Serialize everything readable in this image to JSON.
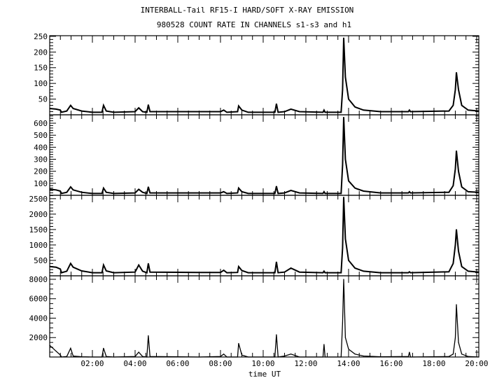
{
  "chart_data": {
    "type": "line",
    "title": "INTERBALL-Tail RF15-I HARD/SOFT X-RAY EMISSION",
    "subtitle": "980528  COUNT RATE IN CHANNELS s1-s3 and h1",
    "xlabel": "time UT",
    "xlim_hours": [
      0,
      20.1
    ],
    "x_tick_labels": [
      "02:00",
      "04:00",
      "06:00",
      "08:00",
      "10:00",
      "12:00",
      "14:00",
      "16:00",
      "18:00",
      "20:00"
    ],
    "x_tick_hours": [
      2,
      4,
      6,
      8,
      10,
      12,
      14,
      16,
      18,
      20
    ],
    "x_minor_step_hours": 0.5,
    "grid": false,
    "times_hours": [
      0,
      0.3,
      0.5,
      0.55,
      0.8,
      0.98,
      1.1,
      1.5,
      2,
      2.45,
      2.52,
      2.65,
      3,
      4.0,
      4.17,
      4.35,
      4.55,
      4.62,
      4.7,
      7,
      8.0,
      8.15,
      8.3,
      8.8,
      8.85,
      9.0,
      9.3,
      10.55,
      10.62,
      10.7,
      11.0,
      11.3,
      11.7,
      12.8,
      12.85,
      12.9,
      13.65,
      13.72,
      13.77,
      13.85,
      14.0,
      14.3,
      14.7,
      15.5,
      16.8,
      16.85,
      16.9,
      18.7,
      18.9,
      19.0,
      19.05,
      19.15,
      19.3,
      19.6,
      20.1
    ],
    "series": [
      {
        "name": "s1",
        "ylim": [
          0,
          252
        ],
        "y_ticks": [
          50,
          100,
          150,
          200,
          250
        ],
        "y_minor_step": 10,
        "values": [
          20,
          18,
          15,
          8,
          12,
          30,
          20,
          12,
          8,
          8,
          30,
          12,
          8,
          10,
          22,
          10,
          8,
          32,
          10,
          10,
          10,
          15,
          8,
          10,
          28,
          15,
          8,
          8,
          35,
          8,
          10,
          18,
          10,
          8,
          15,
          8,
          8,
          80,
          245,
          120,
          50,
          25,
          15,
          10,
          10,
          15,
          10,
          12,
          30,
          80,
          135,
          80,
          30,
          15,
          12
        ]
      },
      {
        "name": "s2",
        "ylim": [
          0,
          670
        ],
        "y_ticks": [
          100,
          200,
          300,
          400,
          500,
          600
        ],
        "y_minor_step": 20,
        "values": [
          50,
          45,
          35,
          15,
          25,
          70,
          45,
          25,
          15,
          15,
          60,
          25,
          15,
          20,
          50,
          25,
          15,
          70,
          20,
          20,
          20,
          30,
          15,
          20,
          60,
          30,
          15,
          15,
          75,
          15,
          20,
          40,
          20,
          15,
          30,
          15,
          15,
          250,
          650,
          300,
          120,
          60,
          35,
          20,
          20,
          30,
          20,
          25,
          80,
          220,
          370,
          200,
          70,
          30,
          25
        ]
      },
      {
        "name": "s3",
        "ylim": [
          0,
          2610
        ],
        "y_ticks": [
          500,
          1000,
          1500,
          2000,
          2500
        ],
        "y_minor_step": 100,
        "values": [
          300,
          280,
          220,
          100,
          150,
          400,
          280,
          160,
          100,
          100,
          350,
          160,
          100,
          120,
          350,
          150,
          100,
          400,
          120,
          110,
          110,
          180,
          100,
          110,
          300,
          170,
          100,
          100,
          450,
          100,
          120,
          250,
          120,
          100,
          150,
          100,
          100,
          900,
          2550,
          1200,
          500,
          250,
          150,
          100,
          100,
          130,
          100,
          130,
          400,
          1000,
          1500,
          800,
          300,
          150,
          120
        ]
      },
      {
        "name": "h1",
        "ylim": [
          0,
          8360
        ],
        "y_ticks": [
          2000,
          4000,
          6000,
          8000
        ],
        "y_minor_step": 500,
        "values": [
          1200,
          600,
          200,
          0,
          50,
          900,
          100,
          20,
          0,
          0,
          900,
          50,
          0,
          50,
          500,
          50,
          0,
          2200,
          50,
          0,
          50,
          300,
          0,
          0,
          1400,
          200,
          0,
          0,
          2300,
          0,
          100,
          300,
          0,
          0,
          1300,
          0,
          0,
          3500,
          8000,
          2000,
          800,
          300,
          100,
          30,
          50,
          500,
          0,
          50,
          300,
          2000,
          5400,
          1500,
          300,
          50,
          0
        ]
      }
    ]
  }
}
